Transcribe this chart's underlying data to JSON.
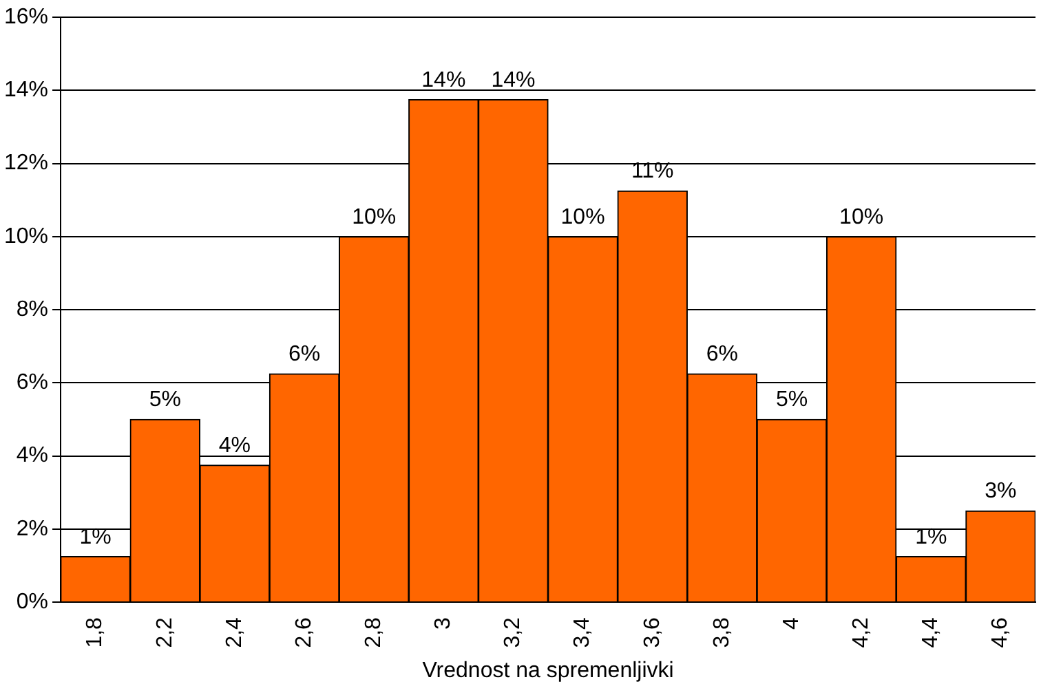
{
  "chart_data": {
    "type": "bar",
    "xlabel": "Vrednost na spremenljivki",
    "categories": [
      "1,8",
      "2,2",
      "2,4",
      "2,6",
      "2,8",
      "3",
      "3,2",
      "3,4",
      "3,6",
      "3,8",
      "4",
      "4,2",
      "4,4",
      "4,6"
    ],
    "values": [
      1.25,
      5,
      3.75,
      6.25,
      10,
      13.75,
      13.75,
      10,
      11.25,
      6.25,
      5,
      10,
      1.25,
      2.5
    ],
    "value_labels": [
      "1%",
      "5%",
      "4%",
      "6%",
      "10%",
      "14%",
      "14%",
      "10%",
      "11%",
      "6%",
      "5%",
      "10%",
      "1%",
      "3%"
    ],
    "color": "#ff6600",
    "ylim": [
      0,
      16
    ],
    "yticks": [
      {
        "value": 0,
        "label": "0%"
      },
      {
        "value": 2,
        "label": "2%"
      },
      {
        "value": 4,
        "label": "4%"
      },
      {
        "value": 6,
        "label": "6%"
      },
      {
        "value": 8,
        "label": "8%"
      },
      {
        "value": 10,
        "label": "10%"
      },
      {
        "value": 12,
        "label": "12%"
      },
      {
        "value": 14,
        "label": "14%"
      },
      {
        "value": 16,
        "label": "16%"
      }
    ],
    "grid": "y",
    "legend": false
  }
}
